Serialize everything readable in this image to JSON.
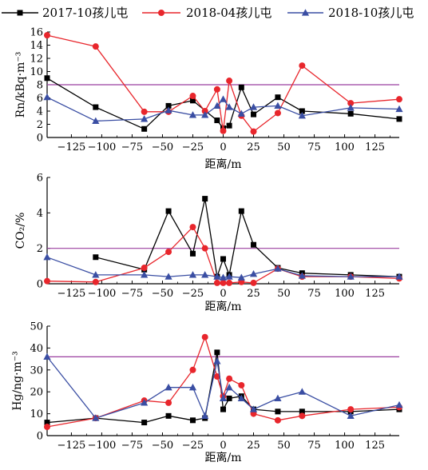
{
  "legend": [
    {
      "name": "2017-10孩儿屯",
      "color": "#000000",
      "marker": "square"
    },
    {
      "name": "2018-04孩儿屯",
      "color": "#e8262c",
      "marker": "circle"
    },
    {
      "name": "2018-10孩儿屯",
      "color": "#3a4ea3",
      "marker": "triangle"
    }
  ],
  "threshold_color": "#9b3fa0",
  "chart_data": [
    {
      "type": "line",
      "xlabel": "距离/m",
      "ylabel": "Rn/kBq·m⁻³",
      "xlim": [
        -145,
        145
      ],
      "ylim": [
        0,
        16
      ],
      "xticks": [
        -125,
        -100,
        -75,
        -50,
        -25,
        0,
        25,
        50,
        75,
        100,
        125
      ],
      "yticks": [
        0,
        2,
        4,
        6,
        8,
        10,
        12,
        14,
        16
      ],
      "threshold": 8,
      "series": [
        {
          "name": "2017-10孩儿屯",
          "x": [
            -145,
            -105,
            -65,
            -45,
            -25,
            -5,
            0,
            5,
            15,
            25,
            45,
            65,
            105,
            145
          ],
          "y": [
            9.0,
            4.6,
            1.3,
            4.8,
            5.6,
            2.6,
            1.4,
            1.8,
            7.6,
            3.5,
            6.1,
            4.0,
            3.6,
            2.8
          ]
        },
        {
          "name": "2018-04孩儿屯",
          "x": [
            -145,
            -105,
            -65,
            -45,
            -25,
            -15,
            -5,
            0,
            5,
            15,
            25,
            45,
            65,
            105,
            145
          ],
          "y": [
            15.5,
            13.8,
            3.9,
            3.9,
            6.3,
            4.0,
            7.3,
            1.0,
            8.6,
            3.3,
            0.9,
            3.7,
            10.9,
            5.2,
            5.8
          ]
        },
        {
          "name": "2018-10孩儿屯",
          "x": [
            -145,
            -105,
            -65,
            -45,
            -25,
            -15,
            -5,
            0,
            5,
            15,
            25,
            45,
            65,
            105,
            145
          ],
          "y": [
            6.1,
            2.5,
            2.8,
            4.1,
            3.4,
            3.4,
            4.8,
            5.8,
            4.6,
            3.6,
            4.6,
            4.8,
            3.3,
            4.5,
            4.3
          ]
        }
      ]
    },
    {
      "type": "line",
      "xlabel": "距离/m",
      "ylabel": "CO₂/%",
      "xlim": [
        -145,
        145
      ],
      "ylim": [
        0,
        6
      ],
      "xticks": [
        -125,
        -100,
        -75,
        -50,
        -25,
        0,
        25,
        50,
        75,
        100,
        125
      ],
      "yticks": [
        0,
        2,
        4,
        6
      ],
      "threshold": 2,
      "series": [
        {
          "name": "2017-10孩儿屯",
          "x": [
            -105,
            -65,
            -45,
            -25,
            -15,
            -5,
            0,
            5,
            15,
            25,
            45,
            65,
            105,
            145
          ],
          "y": [
            1.5,
            0.8,
            4.1,
            1.7,
            4.8,
            0.4,
            1.4,
            0.5,
            4.1,
            2.2,
            0.9,
            0.6,
            0.5,
            0.4
          ]
        },
        {
          "name": "2018-04孩儿屯",
          "x": [
            -145,
            -105,
            -65,
            -45,
            -25,
            -15,
            -5,
            0,
            5,
            15,
            25,
            45,
            65,
            105,
            145
          ],
          "y": [
            0.15,
            0.1,
            0.9,
            1.8,
            3.2,
            2.0,
            0.05,
            0.05,
            0.05,
            0.1,
            0.05,
            0.85,
            0.4,
            0.4,
            0.3
          ]
        },
        {
          "name": "2018-10孩儿屯",
          "x": [
            -145,
            -105,
            -65,
            -45,
            -25,
            -15,
            -5,
            0,
            5,
            15,
            25,
            45,
            65,
            105,
            145
          ],
          "y": [
            1.5,
            0.5,
            0.5,
            0.4,
            0.5,
            0.5,
            0.4,
            0.35,
            0.4,
            0.35,
            0.55,
            0.85,
            0.45,
            0.4,
            0.4
          ]
        }
      ]
    },
    {
      "type": "line",
      "xlabel": "距离/m",
      "ylabel": "Hg/ng·m⁻³",
      "xlim": [
        -145,
        145
      ],
      "ylim": [
        0,
        50
      ],
      "xticks": [
        -125,
        -100,
        -75,
        -50,
        -25,
        0,
        25,
        50,
        75,
        100,
        125
      ],
      "yticks": [
        0,
        10,
        20,
        30,
        40,
        50
      ],
      "threshold": 36,
      "series": [
        {
          "name": "2017-10孩儿屯",
          "x": [
            -145,
            -105,
            -65,
            -45,
            -25,
            -15,
            -5,
            0,
            5,
            15,
            25,
            45,
            65,
            105,
            145
          ],
          "y": [
            6,
            8,
            6,
            9,
            7,
            8,
            38,
            12,
            17,
            18,
            12,
            11,
            11,
            11,
            12
          ]
        },
        {
          "name": "2018-04孩儿屯",
          "x": [
            -145,
            -105,
            -65,
            -45,
            -25,
            -15,
            -5,
            0,
            5,
            15,
            25,
            45,
            65,
            105,
            145
          ],
          "y": [
            4,
            8,
            16,
            15,
            30,
            45,
            27,
            18,
            26,
            23,
            10,
            7,
            9,
            12,
            13
          ]
        },
        {
          "name": "2018-10孩儿屯",
          "x": [
            -145,
            -105,
            -65,
            -45,
            -25,
            -15,
            -5,
            0,
            5,
            15,
            25,
            45,
            65,
            105,
            145
          ],
          "y": [
            36,
            8,
            15,
            22,
            22,
            9,
            34,
            17,
            22,
            17,
            12,
            17,
            20,
            9,
            14
          ]
        }
      ]
    }
  ]
}
